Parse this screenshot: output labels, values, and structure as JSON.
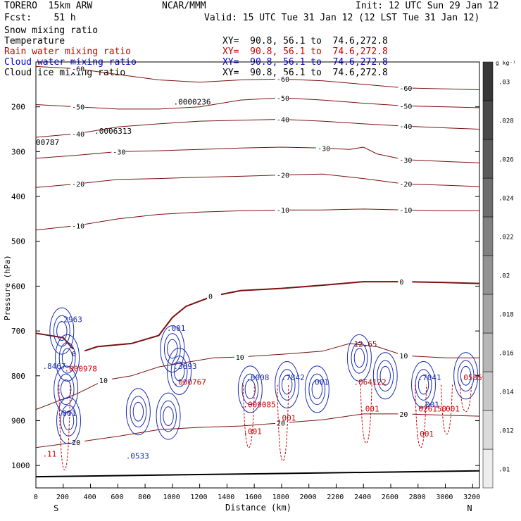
{
  "header": {
    "model": "TORERO  15km ARW",
    "org": "NCAR/MMM",
    "init": "Init: 12 UTC Sun 29 Jan 12",
    "fcst": "Fcst:    51 h",
    "valid": "Valid: 15 UTC Tue 31 Jan 12 (12 LST Tue 31 Jan 12)"
  },
  "fields": [
    {
      "name": "Snow mixing ratio",
      "color": "#000000",
      "xy": "",
      "show_xy": false
    },
    {
      "name": "Temperature",
      "color": "#000000",
      "xy": "XY=  90.8, 56.1 to  74.6,272.8",
      "show_xy": true
    },
    {
      "name": "Rain water mixing ratio",
      "color": "#cc0000",
      "xy": "XY=  90.8, 56.1 to  74.6,272.8",
      "show_xy": true
    },
    {
      "name": "Cloud water mixing ratio",
      "color": "#0000cc",
      "xy": "XY=  90.8, 56.1 to  74.6,272.8",
      "show_xy": true
    },
    {
      "name": "Cloud ice mixing ratio",
      "color": "#000000",
      "xy": "XY=  90.8, 56.1 to  74.6,272.8",
      "show_xy": true
    }
  ],
  "chart_data": {
    "type": "cross-section",
    "xlabel": "Distance (km)",
    "ylabel": "Pressure (hPa)",
    "xlim": [
      0,
      3250
    ],
    "ylim": [
      1050,
      100
    ],
    "x_ticks": [
      0,
      200,
      400,
      600,
      800,
      1000,
      1200,
      1400,
      1600,
      1800,
      2000,
      2200,
      2400,
      2600,
      2800,
      3000,
      3200
    ],
    "y_ticks": [
      200,
      300,
      400,
      500,
      600,
      700,
      800,
      900,
      1000
    ],
    "endpoints": {
      "left": "S",
      "right": "N"
    },
    "colorbar": {
      "unit": "g kg⁻¹",
      "ticks": [
        ".01",
        ".012",
        ".014",
        ".016",
        ".018",
        ".02",
        ".022",
        ".024",
        ".026",
        ".028",
        ".03"
      ]
    },
    "temperature_contours": [
      {
        "value": -60,
        "points": [
          [
            0,
            110
          ],
          [
            300,
            115
          ],
          [
            600,
            128
          ],
          [
            900,
            140
          ],
          [
            1200,
            145
          ],
          [
            1500,
            140
          ],
          [
            1800,
            138
          ],
          [
            2100,
            142
          ],
          [
            2400,
            150
          ],
          [
            2700,
            158
          ],
          [
            3000,
            160
          ],
          [
            3250,
            162
          ]
        ]
      },
      {
        "value": -50,
        "points": [
          [
            0,
            195
          ],
          [
            300,
            200
          ],
          [
            600,
            205
          ],
          [
            900,
            205
          ],
          [
            1200,
            200
          ],
          [
            1500,
            185
          ],
          [
            1800,
            180
          ],
          [
            2100,
            185
          ],
          [
            2400,
            192
          ],
          [
            2700,
            198
          ],
          [
            3000,
            200
          ],
          [
            3250,
            202
          ]
        ]
      },
      {
        "value": -40,
        "points": [
          [
            0,
            268
          ],
          [
            300,
            260
          ],
          [
            600,
            245
          ],
          [
            900,
            238
          ],
          [
            1200,
            232
          ],
          [
            1500,
            230
          ],
          [
            1800,
            228
          ],
          [
            2100,
            232
          ],
          [
            2400,
            238
          ],
          [
            2700,
            243
          ],
          [
            3000,
            247
          ],
          [
            3250,
            250
          ]
        ]
      },
      {
        "value": -30,
        "points": [
          [
            0,
            315
          ],
          [
            300,
            308
          ],
          [
            600,
            300
          ],
          [
            900,
            298
          ],
          [
            1200,
            295
          ],
          [
            1500,
            292
          ],
          [
            1800,
            290
          ],
          [
            2100,
            292
          ],
          [
            2300,
            295
          ],
          [
            2400,
            290
          ],
          [
            2500,
            305
          ],
          [
            2700,
            318
          ],
          [
            3000,
            322
          ],
          [
            3250,
            325
          ]
        ]
      },
      {
        "value": -20,
        "points": [
          [
            0,
            380
          ],
          [
            300,
            372
          ],
          [
            600,
            362
          ],
          [
            900,
            360
          ],
          [
            1200,
            357
          ],
          [
            1500,
            355
          ],
          [
            1800,
            352
          ],
          [
            2100,
            350
          ],
          [
            2400,
            360
          ],
          [
            2700,
            372
          ],
          [
            3000,
            375
          ],
          [
            3250,
            378
          ]
        ]
      },
      {
        "value": -10,
        "points": [
          [
            0,
            475
          ],
          [
            300,
            465
          ],
          [
            600,
            450
          ],
          [
            900,
            440
          ],
          [
            1200,
            435
          ],
          [
            1500,
            432
          ],
          [
            1800,
            430
          ],
          [
            2100,
            430
          ],
          [
            2400,
            428
          ],
          [
            2700,
            430
          ],
          [
            3000,
            432
          ],
          [
            3250,
            432
          ]
        ]
      },
      {
        "value": 0,
        "points": [
          [
            0,
            705
          ],
          [
            200,
            715
          ],
          [
            300,
            750
          ],
          [
            450,
            735
          ],
          [
            700,
            728
          ],
          [
            900,
            710
          ],
          [
            1000,
            670
          ],
          [
            1100,
            645
          ],
          [
            1300,
            622
          ],
          [
            1500,
            610
          ],
          [
            1800,
            605
          ],
          [
            2100,
            598
          ],
          [
            2400,
            590
          ],
          [
            2700,
            590
          ],
          [
            3000,
            592
          ],
          [
            3250,
            594
          ]
        ]
      },
      {
        "value": 10,
        "points": [
          [
            0,
            875
          ],
          [
            300,
            840
          ],
          [
            500,
            810
          ],
          [
            700,
            800
          ],
          [
            900,
            780
          ],
          [
            1100,
            770
          ],
          [
            1300,
            760
          ],
          [
            1500,
            758
          ],
          [
            1800,
            752
          ],
          [
            2100,
            745
          ],
          [
            2300,
            728
          ],
          [
            2500,
            735
          ],
          [
            2700,
            755
          ],
          [
            3000,
            760
          ],
          [
            3250,
            760
          ]
        ]
      },
      {
        "value": 20,
        "points": [
          [
            0,
            960
          ],
          [
            300,
            948
          ],
          [
            600,
            935
          ],
          [
            900,
            920
          ],
          [
            1200,
            915
          ],
          [
            1500,
            912
          ],
          [
            1800,
            905
          ],
          [
            2100,
            898
          ],
          [
            2400,
            885
          ],
          [
            2700,
            885
          ],
          [
            3000,
            888
          ],
          [
            3250,
            890
          ]
        ]
      }
    ],
    "rain_water_labels": [
      {
        "x": 90,
        "p": 980,
        "text": ".11"
      },
      {
        "x": 250,
        "p": 790,
        "text": ".000978"
      },
      {
        "x": 1050,
        "p": 820,
        "text": ".000767"
      },
      {
        "x": 1560,
        "p": 870,
        "text": ".009085"
      },
      {
        "x": 1560,
        "p": 930,
        "text": ".001"
      },
      {
        "x": 1810,
        "p": 900,
        "text": ".001"
      },
      {
        "x": 2370,
        "p": 820,
        "text": ".064122"
      },
      {
        "x": 2420,
        "p": 880,
        "text": ".001"
      },
      {
        "x": 2810,
        "p": 880,
        "text": ".026150"
      },
      {
        "x": 2820,
        "p": 935,
        "text": ".001"
      },
      {
        "x": 3010,
        "p": 880,
        "text": ".001"
      },
      {
        "x": 3140,
        "p": 810,
        "text": ".05859"
      }
    ],
    "cloud_water_labels": [
      {
        "x": 90,
        "p": 785,
        "text": ".8467"
      },
      {
        "x": 210,
        "p": 680,
        "text": ".2963"
      },
      {
        "x": 1000,
        "p": 700,
        "text": ".001"
      },
      {
        "x": 1050,
        "p": 785,
        "text": ".3893"
      },
      {
        "x": 1580,
        "p": 810,
        "text": ".6008"
      },
      {
        "x": 1840,
        "p": 810,
        "text": ".7842"
      },
      {
        "x": 2050,
        "p": 820,
        "text": ".001"
      },
      {
        "x": 2840,
        "p": 810,
        "text": ".7041"
      },
      {
        "x": 2860,
        "p": 870,
        "text": ".001"
      },
      {
        "x": 700,
        "p": 985,
        "text": ".0533"
      },
      {
        "x": 200,
        "p": 890,
        "text": ".001"
      }
    ],
    "snow_labels": [
      {
        "x": 1050,
        "p": 195,
        "text": ".0000236"
      },
      {
        "x": 470,
        "p": 260,
        "text": ".0006313"
      },
      {
        "x": 0,
        "p": 285,
        "text": "00787"
      }
    ],
    "misc_labels": [
      {
        "x": 2370,
        "p": 735,
        "text": "12.65"
      }
    ]
  }
}
